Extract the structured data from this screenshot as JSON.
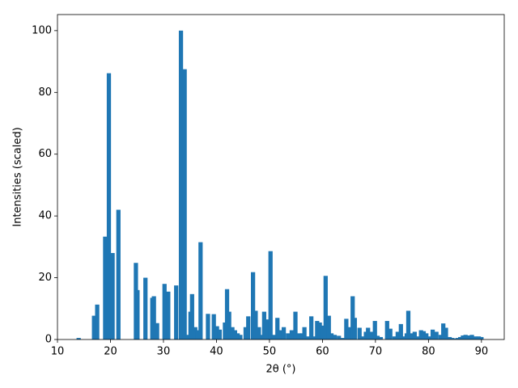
{
  "chart_data": {
    "type": "bar",
    "xlabel": "2θ (°)",
    "ylabel": "Intensities (scaled)",
    "color": "#1f77b4",
    "x": [
      14.0,
      16.9,
      17.5,
      19.0,
      19.7,
      20.4,
      21.5,
      24.8,
      25.1,
      26.6,
      27.9,
      28.2,
      28.8,
      30.2,
      30.9,
      32.4,
      33.3,
      34.0,
      34.6,
      35.1,
      35.4,
      36.0,
      36.4,
      37.0,
      38.4,
      39.5,
      40.1,
      40.6,
      41.6,
      42.0,
      42.4,
      43.0,
      43.5,
      44.0,
      44.5,
      45.5,
      46.0,
      46.9,
      47.4,
      48.0,
      48.7,
      49.0,
      49.5,
      50.2,
      50.8,
      51.5,
      52.0,
      52.7,
      53.5,
      54.2,
      54.9,
      55.6,
      56.2,
      56.6,
      57.2,
      57.9,
      58.4,
      59.0,
      59.5,
      60.0,
      60.6,
      61.2,
      61.7,
      62.3,
      63.1,
      63.8,
      64.5,
      65.0,
      65.7,
      66.1,
      67.0,
      67.4,
      68.2,
      68.6,
      69.2,
      69.9,
      70.4,
      71.0,
      72.2,
      72.8,
      73.6,
      74.2,
      74.8,
      75.5,
      75.9,
      76.2,
      76.8,
      77.4,
      78.1,
      78.6,
      79.1,
      79.6,
      80.3,
      80.8,
      81.5,
      82.3,
      82.8,
      83.3,
      84.0,
      84.5,
      85.0,
      85.5,
      86.0,
      86.5,
      87.0,
      87.5,
      88.2,
      88.8,
      89.5,
      90.0
    ],
    "values": [
      0.5,
      7.7,
      11.3,
      33.3,
      86.2,
      28.0,
      42.0,
      24.8,
      16.0,
      20.0,
      13.5,
      14.0,
      5.3,
      18.0,
      15.5,
      17.5,
      100,
      87.5,
      1.5,
      9.0,
      14.7,
      4.0,
      3.0,
      31.5,
      8.3,
      8.2,
      4.3,
      3.2,
      5.5,
      16.3,
      9.0,
      4.0,
      3.0,
      2.0,
      1.5,
      4.0,
      7.5,
      21.8,
      9.3,
      4.0,
      1.5,
      9.0,
      6.5,
      28.6,
      1.5,
      7.0,
      3.0,
      4.0,
      2.0,
      3.0,
      9.0,
      2.0,
      2.0,
      4.0,
      1.0,
      7.5,
      1.0,
      6.0,
      5.5,
      4.5,
      20.6,
      7.7,
      2.0,
      1.5,
      1.2,
      0.5,
      6.7,
      4.0,
      14.0,
      7.0,
      3.8,
      1.0,
      2.5,
      3.8,
      2.5,
      6.0,
      1.2,
      0.8,
      6.0,
      3.5,
      1.0,
      2.5,
      5.0,
      1.0,
      2.0,
      9.3,
      2.0,
      2.5,
      1.0,
      3.0,
      2.7,
      2.0,
      1.0,
      3.2,
      2.5,
      1.5,
      5.2,
      3.8,
      0.8,
      0.5,
      0.3,
      0.5,
      0.8,
      1.3,
      1.5,
      1.3,
      1.5,
      1.0,
      1.0,
      0.8
    ],
    "xlim": [
      10,
      94.3
    ],
    "xticks": [
      10,
      20,
      30,
      40,
      50,
      60,
      70,
      80,
      90
    ],
    "ylim": [
      0,
      105.2
    ],
    "yticks": [
      0,
      20,
      40,
      60,
      80,
      100
    ]
  }
}
